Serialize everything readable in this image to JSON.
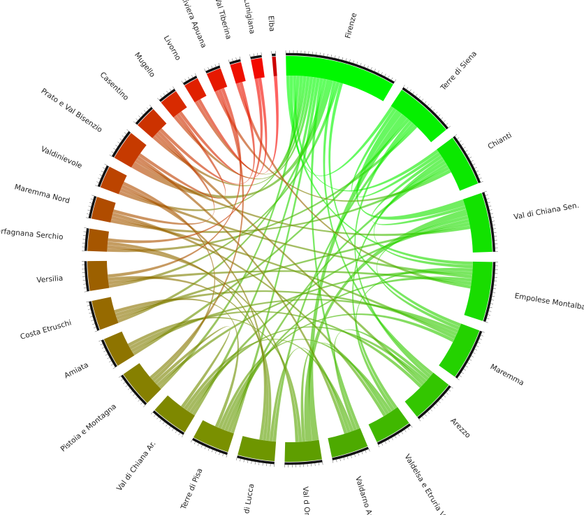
{
  "chart_data": {
    "type": "chord",
    "title": "",
    "start_color": "#00ff00",
    "end_color": "#ff0000",
    "track_color": "#111111",
    "segments": [
      {
        "name": "Firenze",
        "size": 30,
        "color": "#00f800"
      },
      {
        "name": "Terre di Siena",
        "size": 16,
        "color": "#05f000"
      },
      {
        "name": "Chianti",
        "size": 14,
        "color": "#0be800"
      },
      {
        "name": "Val di Chiana Sen.",
        "size": 16,
        "color": "#12e200"
      },
      {
        "name": "Empolese Montalbano",
        "size": 16,
        "color": "#19dc00"
      },
      {
        "name": "Maremma",
        "size": 14,
        "color": "#24d200"
      },
      {
        "name": "Arezzo",
        "size": 12,
        "color": "#33c600"
      },
      {
        "name": "Valdelsa e Etruria Volt.",
        "size": 10,
        "color": "#40b800"
      },
      {
        "name": "Valdarno Aretino",
        "size": 10,
        "color": "#4daa00"
      },
      {
        "name": "Val d Orcia",
        "size": 10,
        "color": "#5e9e00"
      },
      {
        "name": "Piana di Lucca",
        "size": 10,
        "color": "#6e9600"
      },
      {
        "name": "Terre di Pisa",
        "size": 10,
        "color": "#7a9000"
      },
      {
        "name": "Val di Chiana Ar.",
        "size": 10,
        "color": "#7e8800"
      },
      {
        "name": "Pistoia e Montagna",
        "size": 10,
        "color": "#868000"
      },
      {
        "name": "Amiata",
        "size": 8,
        "color": "#8e7400"
      },
      {
        "name": "Costa Etruschi",
        "size": 8,
        "color": "#966a00"
      },
      {
        "name": "Versilia",
        "size": 8,
        "color": "#9c6000"
      },
      {
        "name": "Garfagnana Serchio",
        "size": 6,
        "color": "#a65600"
      },
      {
        "name": "Maremma Nord",
        "size": 6,
        "color": "#b04c00"
      },
      {
        "name": "Valdinievole",
        "size": 6,
        "color": "#bc4400"
      },
      {
        "name": "Prato e Val Bisenzio",
        "size": 8,
        "color": "#c63a00"
      },
      {
        "name": "Casentino",
        "size": 6,
        "color": "#cc3200"
      },
      {
        "name": "Mugello",
        "size": 5,
        "color": "#d82a00"
      },
      {
        "name": "Livorno",
        "size": 4,
        "color": "#e02000"
      },
      {
        "name": "Riviera Apuana",
        "size": 4,
        "color": "#e61800"
      },
      {
        "name": "Val Tiberina",
        "size": 3,
        "color": "#ee1000"
      },
      {
        "name": "Lunigiana",
        "size": 3,
        "color": "#f20a00"
      },
      {
        "name": "Elba",
        "size": 1,
        "color": "#cc0000"
      }
    ],
    "links": [
      [
        0,
        4,
        1
      ],
      [
        0,
        1,
        1
      ],
      [
        0,
        2,
        1
      ],
      [
        0,
        13,
        1
      ],
      [
        0,
        23,
        1
      ],
      [
        0,
        19,
        1
      ],
      [
        0,
        21,
        1
      ],
      [
        0,
        22,
        1
      ],
      [
        0,
        12,
        1
      ],
      [
        0,
        11,
        1
      ],
      [
        0,
        8,
        1
      ],
      [
        0,
        15,
        1
      ],
      [
        0,
        20,
        2
      ],
      [
        0,
        6,
        1
      ],
      [
        0,
        16,
        1
      ],
      [
        0,
        5,
        1
      ],
      [
        1,
        2,
        1
      ],
      [
        1,
        3,
        2
      ],
      [
        1,
        9,
        2
      ],
      [
        1,
        14,
        1
      ],
      [
        1,
        6,
        1
      ],
      [
        1,
        10,
        1
      ],
      [
        1,
        17,
        1
      ],
      [
        2,
        3,
        1
      ],
      [
        2,
        7,
        1
      ],
      [
        2,
        4,
        1
      ],
      [
        2,
        11,
        1
      ],
      [
        2,
        18,
        1
      ],
      [
        2,
        24,
        1
      ],
      [
        3,
        9,
        2
      ],
      [
        3,
        5,
        1
      ],
      [
        3,
        12,
        1
      ],
      [
        3,
        15,
        1
      ],
      [
        3,
        20,
        1
      ],
      [
        4,
        7,
        1
      ],
      [
        4,
        13,
        1
      ],
      [
        4,
        19,
        1
      ],
      [
        4,
        11,
        1
      ],
      [
        4,
        16,
        1
      ],
      [
        4,
        25,
        1
      ],
      [
        5,
        14,
        1
      ],
      [
        5,
        15,
        1
      ],
      [
        5,
        18,
        1
      ],
      [
        5,
        11,
        1
      ],
      [
        6,
        8,
        1
      ],
      [
        6,
        12,
        1
      ],
      [
        6,
        21,
        1
      ],
      [
        6,
        14,
        1
      ],
      [
        7,
        11,
        1
      ],
      [
        7,
        9,
        1
      ],
      [
        7,
        18,
        1
      ],
      [
        8,
        12,
        1
      ],
      [
        8,
        10,
        1
      ],
      [
        8,
        20,
        1
      ],
      [
        9,
        14,
        1
      ],
      [
        9,
        17,
        1
      ],
      [
        10,
        16,
        1
      ],
      [
        10,
        17,
        1
      ],
      [
        10,
        19,
        1
      ],
      [
        11,
        15,
        1
      ],
      [
        12,
        13,
        1
      ],
      [
        13,
        19,
        1
      ],
      [
        13,
        24,
        1
      ],
      [
        16,
        24,
        1
      ],
      [
        17,
        26,
        1
      ],
      [
        18,
        21,
        1
      ],
      [
        20,
        22,
        1
      ],
      [
        21,
        25,
        1
      ],
      [
        22,
        26,
        1
      ],
      [
        23,
        27,
        1
      ]
    ]
  }
}
